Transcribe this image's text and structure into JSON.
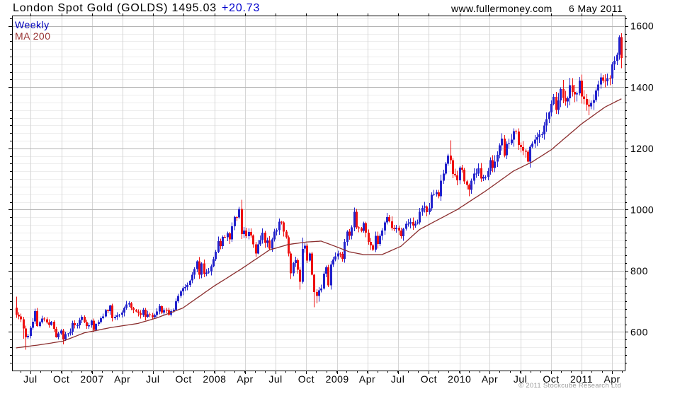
{
  "header": {
    "title": "London Spot Gold (GOLDS) 1495.03",
    "change": "+20.73",
    "website": "www.fullermoney.com",
    "date": "6 May 2011"
  },
  "legend": {
    "weekly": "Weekly",
    "ma200": "MA 200"
  },
  "footer": {
    "copyright": "© 2011 Stockcube Research Ltd"
  },
  "colors": {
    "up_candle": "#2222cc",
    "down_candle": "#ee1111",
    "ma_line": "#8b2e2e",
    "grid_minor": "#ededed",
    "grid_major": "#b5b5b5",
    "grid_vert": "#d5d5d5",
    "axis": "#000000",
    "change_text": "#0000cc",
    "weekly_text": "#0000bb",
    "ma_text": "#993333",
    "copyright_text": "#9a9a9a"
  },
  "chart_data": {
    "type": "candlestick",
    "instrument": "London Spot Gold (GOLDS)",
    "frequency": "Weekly",
    "last_price": 1495.03,
    "change": 20.73,
    "as_of": "6 May 2011",
    "series_span": "May 2006 - May 2011",
    "moving_average": "MA 200",
    "first_open": 680,
    "closes": [
      657,
      651,
      641,
      611,
      583,
      587,
      614,
      634,
      668,
      620,
      632,
      644,
      641,
      631,
      623,
      633,
      610,
      583,
      595,
      604,
      576,
      593,
      595,
      601,
      629,
      622,
      622,
      639,
      650,
      632,
      619,
      622,
      637,
      607,
      627,
      632,
      645,
      651,
      672,
      668,
      687,
      645,
      650,
      654,
      657,
      663,
      679,
      690,
      694,
      678,
      672,
      667,
      662,
      655,
      673,
      650,
      658,
      655,
      649,
      655,
      667,
      684,
      663,
      672,
      671,
      657,
      668,
      673,
      700,
      718,
      733,
      743,
      747,
      754,
      768,
      787,
      806,
      831,
      787,
      824,
      789,
      794,
      798,
      815,
      838,
      862,
      897,
      881,
      911,
      909,
      922,
      903,
      945,
      975,
      974,
      1002,
      920,
      931,
      913,
      927,
      915,
      887,
      857,
      886,
      900,
      925,
      891,
      899,
      873,
      903,
      928,
      933,
      960,
      958,
      928,
      910,
      856,
      792,
      825,
      835,
      803,
      764,
      872,
      882,
      833,
      856,
      787,
      730,
      718,
      736,
      742,
      791,
      811,
      752,
      821,
      837,
      847,
      857,
      855,
      839,
      895,
      928,
      914,
      942,
      993,
      942,
      939,
      930,
      956,
      925,
      895,
      883,
      869,
      914,
      888,
      914,
      931,
      958,
      975,
      962,
      940,
      936,
      941,
      931,
      913,
      937,
      953,
      954,
      959,
      948,
      954,
      958,
      993,
      1006,
      1010,
      992,
      1004,
      1048,
      1051,
      1056,
      1044,
      1095,
      1118,
      1150,
      1176,
      1162,
      1116,
      1112,
      1096,
      1137,
      1130,
      1092,
      1081,
      1065,
      1094,
      1118,
      1118,
      1135,
      1101,
      1107,
      1107,
      1126,
      1161,
      1136,
      1157,
      1179,
      1210,
      1232,
      1177,
      1215,
      1217,
      1228,
      1256,
      1255,
      1211,
      1204,
      1193,
      1189,
      1157,
      1205,
      1216,
      1228,
      1237,
      1246,
      1246,
      1275,
      1296,
      1317,
      1345,
      1368,
      1325,
      1357,
      1394,
      1365,
      1353,
      1364,
      1406,
      1385,
      1376,
      1380,
      1421,
      1369,
      1361,
      1343,
      1337,
      1349,
      1358,
      1389,
      1409,
      1432,
      1421,
      1419,
      1430,
      1428,
      1474,
      1486,
      1506,
      1563,
      1495
    ],
    "spikes": {
      "0": {
        "high": 715
      },
      "3": {
        "low": 578
      },
      "4": {
        "low": 542
      },
      "8": {
        "high": 676
      },
      "20": {
        "low": 560
      },
      "40": {
        "high": 689
      },
      "95": {
        "high": 1009
      },
      "96": {
        "high": 1032,
        "low": 904
      },
      "102": {
        "low": 845
      },
      "117": {
        "low": 773
      },
      "121": {
        "low": 739
      },
      "122": {
        "high": 908,
        "low": 758
      },
      "127": {
        "low": 681
      },
      "128": {
        "low": 693
      },
      "129": {
        "low": 699
      },
      "144": {
        "high": 1007
      },
      "152": {
        "low": 865
      },
      "164": {
        "low": 905
      },
      "185": {
        "high": 1226
      },
      "193": {
        "low": 1044
      },
      "212": {
        "high": 1265
      },
      "218": {
        "low": 1155
      },
      "233": {
        "high": 1424
      },
      "236": {
        "high": 1431
      },
      "244": {
        "low": 1308
      },
      "257": {
        "high": 1569
      },
      "258": {
        "high": 1576,
        "low": 1462
      }
    },
    "ma200_anchors": [
      [
        0,
        548
      ],
      [
        10,
        558
      ],
      [
        20,
        570
      ],
      [
        29,
        597
      ],
      [
        40,
        614
      ],
      [
        52,
        628
      ],
      [
        60,
        646
      ],
      [
        71,
        678
      ],
      [
        84,
        748
      ],
      [
        96,
        806
      ],
      [
        108,
        868
      ],
      [
        116,
        886
      ],
      [
        124,
        894
      ],
      [
        130,
        897
      ],
      [
        136,
        880
      ],
      [
        142,
        862
      ],
      [
        148,
        853
      ],
      [
        156,
        853
      ],
      [
        164,
        880
      ],
      [
        172,
        935
      ],
      [
        188,
        1000
      ],
      [
        200,
        1060
      ],
      [
        212,
        1126
      ],
      [
        220,
        1156
      ],
      [
        228,
        1195
      ],
      [
        241,
        1280
      ],
      [
        251,
        1335
      ],
      [
        258,
        1362
      ]
    ],
    "y_axis": {
      "side": "right",
      "ylim": [
        474,
        1634
      ],
      "major_ticks": [
        600,
        800,
        1000,
        1200,
        1400,
        1600
      ],
      "minor_step": 25
    },
    "x_ticks": [
      {
        "pos": 6.1,
        "label": "Jul"
      },
      {
        "pos": 19.3,
        "label": "Oct"
      },
      {
        "pos": 32.4,
        "label": "2007"
      },
      {
        "pos": 45.3,
        "label": "Apr"
      },
      {
        "pos": 58.3,
        "label": "Jul"
      },
      {
        "pos": 71.4,
        "label": "Oct"
      },
      {
        "pos": 84.6,
        "label": "2008"
      },
      {
        "pos": 97.6,
        "label": "Apr"
      },
      {
        "pos": 110.6,
        "label": "Jul"
      },
      {
        "pos": 123.7,
        "label": "Oct"
      },
      {
        "pos": 136.9,
        "label": "2009"
      },
      {
        "pos": 149.7,
        "label": "Apr"
      },
      {
        "pos": 162.7,
        "label": "Jul"
      },
      {
        "pos": 175.9,
        "label": "Oct"
      },
      {
        "pos": 189,
        "label": "2010"
      },
      {
        "pos": 201.9,
        "label": "Apr"
      },
      {
        "pos": 214.9,
        "label": "Jul"
      },
      {
        "pos": 228,
        "label": "Oct"
      },
      {
        "pos": 241,
        "label": "2011"
      },
      {
        "pos": 254,
        "label": "Apr"
      }
    ],
    "grid": "horizontal minors every 25, majors every 200, vertical lines at quarters",
    "legend_position": "top-left inside plot"
  }
}
